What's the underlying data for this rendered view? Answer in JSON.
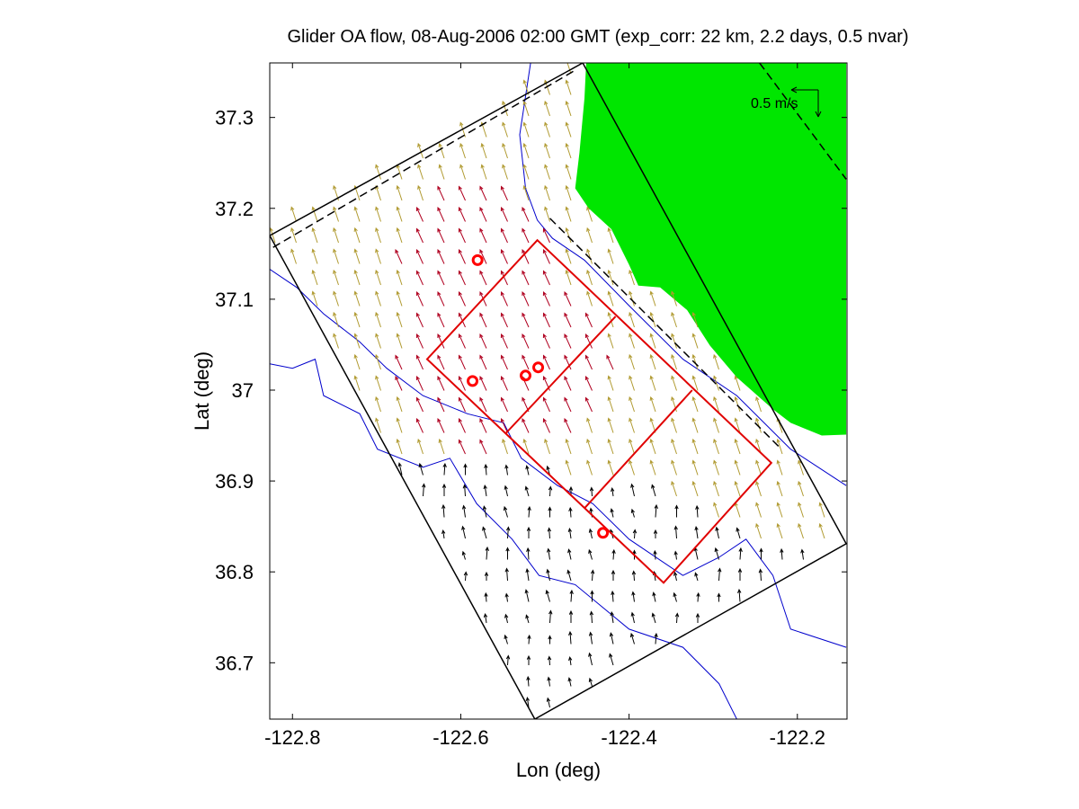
{
  "chart_data": {
    "type": "map",
    "title": "Glider OA flow, 08-Aug-2006 02:00 GMT (exp_corr: 22 km, 2.2 days, 0.5 nvar)",
    "xlabel": "Lon (deg)",
    "ylabel": "Lat (deg)",
    "xlim": [
      -122.827,
      -122.141
    ],
    "ylim": [
      36.638,
      37.36
    ],
    "xticks": [
      -122.8,
      -122.6,
      -122.4,
      -122.2
    ],
    "xtick_labels": [
      "-122.8",
      "-122.6",
      "-122.4",
      "-122.2"
    ],
    "yticks": [
      37.3,
      37.2,
      37.1,
      37.0,
      36.9,
      36.8,
      36.7
    ],
    "ytick_labels": [
      "37.3",
      "37.2",
      "37.1",
      "37",
      "36.9",
      "36.8",
      "36.7"
    ],
    "scale_label": "0.5 m/s",
    "colors": {
      "land": "#00e600",
      "contour": "#0000cc",
      "boundary": "#000000",
      "box": "#e00000",
      "glider": "#ff0000",
      "arrow_oa": "#b09a30",
      "arrow_near": "#b00020",
      "arrow_outside": "#000000"
    },
    "land": [
      [
        -122.451,
        37.36
      ],
      [
        -122.142,
        37.36
      ],
      [
        -122.142,
        36.951
      ],
      [
        -122.171,
        36.95
      ],
      [
        -122.208,
        36.964
      ],
      [
        -122.229,
        36.979
      ],
      [
        -122.272,
        37.014
      ],
      [
        -122.304,
        37.049
      ],
      [
        -122.331,
        37.088
      ],
      [
        -122.363,
        37.113
      ],
      [
        -122.389,
        37.115
      ],
      [
        -122.4,
        37.138
      ],
      [
        -122.421,
        37.177
      ],
      [
        -122.448,
        37.2
      ],
      [
        -122.464,
        37.222
      ],
      [
        -122.459,
        37.261
      ],
      [
        -122.453,
        37.321
      ]
    ],
    "contours": [
      [
        [
          -122.517,
          37.36
        ],
        [
          -122.53,
          37.281
        ],
        [
          -122.523,
          37.222
        ],
        [
          -122.509,
          37.187
        ],
        [
          -122.491,
          37.167
        ],
        [
          -122.453,
          37.143
        ],
        [
          -122.4,
          37.093
        ],
        [
          -122.336,
          37.034
        ],
        [
          -122.272,
          36.994
        ],
        [
          -122.208,
          36.935
        ],
        [
          -122.142,
          36.895
        ]
      ],
      [
        [
          -122.827,
          37.133
        ],
        [
          -122.795,
          37.113
        ],
        [
          -122.763,
          37.084
        ],
        [
          -122.72,
          37.053
        ],
        [
          -122.688,
          37.024
        ],
        [
          -122.645,
          36.994
        ],
        [
          -122.592,
          36.974
        ],
        [
          -122.549,
          36.964
        ],
        [
          -122.528,
          36.925
        ],
        [
          -122.485,
          36.895
        ],
        [
          -122.443,
          36.875
        ],
        [
          -122.4,
          36.836
        ],
        [
          -122.336,
          36.796
        ],
        [
          -122.293,
          36.816
        ],
        [
          -122.261,
          36.836
        ],
        [
          -122.229,
          36.796
        ],
        [
          -122.208,
          36.737
        ],
        [
          -122.142,
          36.717
        ]
      ],
      [
        [
          -122.827,
          37.029
        ],
        [
          -122.8,
          37.024
        ],
        [
          -122.773,
          37.034
        ],
        [
          -122.763,
          36.994
        ],
        [
          -122.72,
          36.974
        ],
        [
          -122.699,
          36.935
        ],
        [
          -122.645,
          36.915
        ],
        [
          -122.613,
          36.925
        ],
        [
          -122.581,
          36.875
        ],
        [
          -122.539,
          36.836
        ],
        [
          -122.507,
          36.796
        ],
        [
          -122.464,
          36.786
        ],
        [
          -122.4,
          36.737
        ],
        [
          -122.336,
          36.717
        ],
        [
          -122.293,
          36.677
        ],
        [
          -122.272,
          36.638
        ]
      ]
    ],
    "domain_boundary": [
      [
        -122.827,
        37.17
      ],
      [
        -122.455,
        37.36
      ],
      [
        -122.142,
        36.831
      ],
      [
        -122.512,
        36.638
      ]
    ],
    "dashed_lines": [
      [
        [
          -122.823,
          37.157
        ],
        [
          -122.464,
          37.352
        ]
      ],
      [
        [
          -122.494,
          37.189
        ],
        [
          -122.219,
          36.935
        ]
      ],
      [
        [
          -122.245,
          37.36
        ],
        [
          -122.142,
          37.232
        ]
      ]
    ],
    "survey_box": [
      [
        -122.509,
        37.165
      ],
      [
        -122.231,
        36.92
      ],
      [
        -122.359,
        36.788
      ],
      [
        -122.64,
        37.034
      ]
    ],
    "survey_dividers": [
      [
        [
          -122.416,
          37.081
        ],
        [
          -122.546,
          36.953
        ]
      ],
      [
        [
          -122.325,
          37.0
        ],
        [
          -122.453,
          36.87
        ]
      ]
    ],
    "gliders": [
      [
        -122.58,
        37.143
      ],
      [
        -122.586,
        37.01
      ],
      [
        -122.523,
        37.016
      ],
      [
        -122.508,
        37.025
      ],
      [
        -122.431,
        36.843
      ]
    ],
    "vector_field": {
      "mean_u_mps": -0.05,
      "mean_v_mps": 0.15,
      "direction": "NNW"
    }
  }
}
